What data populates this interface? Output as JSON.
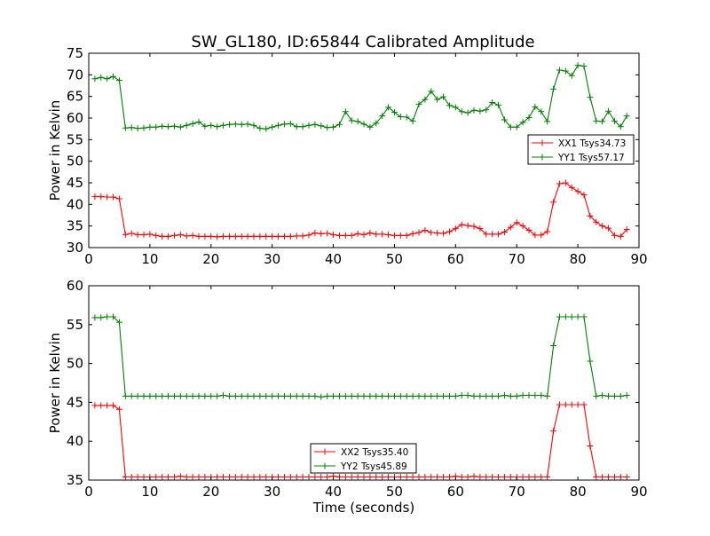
{
  "title": "SW_GL180, ID:65844 Calibrated Amplitude",
  "chart_data": [
    {
      "type": "line",
      "title": "SW_GL180, ID:65844 Calibrated Amplitude",
      "xlabel": "",
      "ylabel": "Power in Kelvin",
      "xlim": [
        0,
        90
      ],
      "ylim": [
        30,
        75
      ],
      "xticks": [
        0,
        10,
        20,
        30,
        40,
        50,
        60,
        70,
        80,
        90
      ],
      "yticks": [
        30,
        35,
        40,
        45,
        50,
        55,
        60,
        65,
        70,
        75
      ],
      "legend_position": "center-right",
      "grid": false,
      "series": [
        {
          "name": "XX1 Tsys34.73",
          "color": "#ff0000",
          "x": [
            1,
            2,
            3,
            4,
            5,
            6,
            7,
            8,
            9,
            10,
            11,
            12,
            13,
            14,
            15,
            16,
            17,
            18,
            19,
            20,
            21,
            22,
            23,
            24,
            25,
            26,
            27,
            28,
            29,
            30,
            31,
            32,
            33,
            34,
            35,
            36,
            37,
            38,
            39,
            40,
            41,
            42,
            43,
            44,
            45,
            46,
            47,
            48,
            49,
            50,
            51,
            52,
            53,
            54,
            55,
            56,
            57,
            58,
            59,
            60,
            61,
            62,
            63,
            64,
            65,
            66,
            67,
            68,
            69,
            70,
            71,
            72,
            73,
            74,
            75,
            76,
            77,
            78,
            79,
            80,
            81,
            82,
            83,
            84,
            85,
            86,
            87,
            88
          ],
          "values": [
            41.8,
            41.8,
            41.7,
            41.7,
            41.3,
            33.0,
            33.3,
            33.0,
            33.0,
            33.1,
            32.8,
            32.6,
            32.6,
            32.8,
            33.0,
            32.7,
            32.8,
            32.6,
            32.6,
            32.6,
            32.5,
            32.6,
            32.6,
            32.6,
            32.6,
            32.6,
            32.6,
            32.6,
            32.6,
            32.6,
            32.6,
            32.6,
            32.6,
            32.7,
            32.7,
            32.9,
            33.4,
            33.2,
            33.3,
            33.0,
            32.8,
            32.8,
            32.8,
            33.2,
            33.0,
            33.4,
            33.1,
            33.1,
            33.0,
            32.8,
            32.8,
            32.8,
            33.2,
            33.5,
            34.0,
            33.5,
            33.4,
            33.3,
            33.7,
            34.4,
            35.3,
            35.1,
            34.9,
            34.4,
            33.1,
            33.1,
            33.1,
            33.6,
            34.7,
            35.8,
            35.0,
            34.0,
            32.9,
            32.9,
            33.7,
            40.5,
            44.8,
            45.0,
            43.9,
            43.0,
            42.2,
            37.3,
            35.9,
            35.0,
            34.5,
            32.8,
            32.6,
            34.2
          ]
        },
        {
          "name": "YY1 Tsys57.17",
          "color": "#008000",
          "x": [
            1,
            2,
            3,
            4,
            5,
            6,
            7,
            8,
            9,
            10,
            11,
            12,
            13,
            14,
            15,
            16,
            17,
            18,
            19,
            20,
            21,
            22,
            23,
            24,
            25,
            26,
            27,
            28,
            29,
            30,
            31,
            32,
            33,
            34,
            35,
            36,
            37,
            38,
            39,
            40,
            41,
            42,
            43,
            44,
            45,
            46,
            47,
            48,
            49,
            50,
            51,
            52,
            53,
            54,
            55,
            56,
            57,
            58,
            59,
            60,
            61,
            62,
            63,
            64,
            65,
            66,
            67,
            68,
            69,
            70,
            71,
            72,
            73,
            74,
            75,
            76,
            77,
            78,
            79,
            80,
            81,
            82,
            83,
            84,
            85,
            86,
            87,
            88
          ],
          "values": [
            69.1,
            69.4,
            69.1,
            69.6,
            68.7,
            57.7,
            57.8,
            57.6,
            57.7,
            57.9,
            57.9,
            58.1,
            58.0,
            58.1,
            57.9,
            58.3,
            58.7,
            59.1,
            58.1,
            58.3,
            58.0,
            58.3,
            58.5,
            58.6,
            58.5,
            58.6,
            58.3,
            57.6,
            57.5,
            57.9,
            58.3,
            58.6,
            58.7,
            58.0,
            58.0,
            58.3,
            58.5,
            58.2,
            57.8,
            57.9,
            58.5,
            61.5,
            59.4,
            59.2,
            58.6,
            57.9,
            58.8,
            60.5,
            62.5,
            61.3,
            60.3,
            60.2,
            59.3,
            63.2,
            64.3,
            66.2,
            64.3,
            64.9,
            62.9,
            62.5,
            61.5,
            61.2,
            61.8,
            61.6,
            61.9,
            63.6,
            63.0,
            59.6,
            57.9,
            57.9,
            59.0,
            60.1,
            62.6,
            61.5,
            59.2,
            66.7,
            71.1,
            70.9,
            69.8,
            72.2,
            72.0,
            64.8,
            59.3,
            59.2,
            61.6,
            59.3,
            58.0,
            60.5
          ]
        }
      ]
    },
    {
      "type": "line",
      "title": "",
      "xlabel": "Time (seconds)",
      "ylabel": "Power in Kelvin",
      "xlim": [
        0,
        90
      ],
      "ylim": [
        35,
        60
      ],
      "xticks": [
        0,
        10,
        20,
        30,
        40,
        50,
        60,
        70,
        80,
        90
      ],
      "yticks": [
        35,
        40,
        45,
        50,
        55,
        60
      ],
      "legend_position": "lower-center",
      "grid": false,
      "series": [
        {
          "name": "XX2 Tsys35.40",
          "color": "#ff0000",
          "x": [
            1,
            2,
            3,
            4,
            5,
            6,
            7,
            8,
            9,
            10,
            11,
            12,
            13,
            14,
            15,
            16,
            17,
            18,
            19,
            20,
            21,
            22,
            23,
            24,
            25,
            26,
            27,
            28,
            29,
            30,
            31,
            32,
            33,
            34,
            35,
            36,
            37,
            38,
            39,
            40,
            41,
            42,
            43,
            44,
            45,
            46,
            47,
            48,
            49,
            50,
            51,
            52,
            53,
            54,
            55,
            56,
            57,
            58,
            59,
            60,
            61,
            62,
            63,
            64,
            65,
            66,
            67,
            68,
            69,
            70,
            71,
            72,
            73,
            74,
            75,
            76,
            77,
            78,
            79,
            80,
            81,
            82,
            83,
            84,
            85,
            86,
            87,
            88
          ],
          "values": [
            44.6,
            44.6,
            44.6,
            44.6,
            44.1,
            35.4,
            35.4,
            35.4,
            35.4,
            35.4,
            35.4,
            35.4,
            35.4,
            35.4,
            35.5,
            35.4,
            35.4,
            35.4,
            35.4,
            35.4,
            35.4,
            35.4,
            35.4,
            35.4,
            35.4,
            35.4,
            35.4,
            35.4,
            35.4,
            35.4,
            35.4,
            35.4,
            35.4,
            35.4,
            35.4,
            35.4,
            35.4,
            35.4,
            35.4,
            35.5,
            35.4,
            35.4,
            35.4,
            35.4,
            35.4,
            35.4,
            35.4,
            35.4,
            35.4,
            35.4,
            35.4,
            35.4,
            35.4,
            35.4,
            35.4,
            35.4,
            35.4,
            35.4,
            35.4,
            35.5,
            35.4,
            35.4,
            35.5,
            35.4,
            35.4,
            35.4,
            35.4,
            35.4,
            35.4,
            35.4,
            35.4,
            35.4,
            35.4,
            35.4,
            35.4,
            41.3,
            44.7,
            44.7,
            44.7,
            44.7,
            44.7,
            39.4,
            35.4,
            35.4,
            35.4,
            35.4,
            35.4,
            35.4
          ]
        },
        {
          "name": "YY2 Tsys45.89",
          "color": "#008000",
          "x": [
            1,
            2,
            3,
            4,
            5,
            6,
            7,
            8,
            9,
            10,
            11,
            12,
            13,
            14,
            15,
            16,
            17,
            18,
            19,
            20,
            21,
            22,
            23,
            24,
            25,
            26,
            27,
            28,
            29,
            30,
            31,
            32,
            33,
            34,
            35,
            36,
            37,
            38,
            39,
            40,
            41,
            42,
            43,
            44,
            45,
            46,
            47,
            48,
            49,
            50,
            51,
            52,
            53,
            54,
            55,
            56,
            57,
            58,
            59,
            60,
            61,
            62,
            63,
            64,
            65,
            66,
            67,
            68,
            69,
            70,
            71,
            72,
            73,
            74,
            75,
            76,
            77,
            78,
            79,
            80,
            81,
            82,
            83,
            84,
            85,
            86,
            87,
            88
          ],
          "values": [
            55.9,
            55.9,
            56.0,
            56.0,
            55.3,
            45.8,
            45.8,
            45.8,
            45.8,
            45.8,
            45.8,
            45.8,
            45.8,
            45.8,
            45.8,
            45.8,
            45.8,
            45.8,
            45.8,
            45.8,
            45.8,
            45.9,
            45.8,
            45.8,
            45.8,
            45.8,
            45.8,
            45.8,
            45.8,
            45.8,
            45.8,
            45.8,
            45.8,
            45.8,
            45.8,
            45.8,
            45.8,
            45.7,
            45.8,
            45.8,
            45.8,
            45.8,
            45.8,
            45.8,
            45.8,
            45.8,
            45.8,
            45.8,
            45.8,
            45.8,
            45.8,
            45.8,
            45.8,
            45.8,
            45.8,
            45.8,
            45.8,
            45.8,
            45.8,
            45.8,
            45.9,
            45.9,
            45.8,
            45.8,
            45.8,
            45.8,
            45.8,
            45.9,
            45.8,
            45.8,
            45.9,
            45.9,
            45.9,
            45.9,
            45.8,
            52.3,
            56.0,
            56.0,
            56.0,
            56.0,
            56.0,
            50.3,
            45.8,
            45.9,
            45.8,
            45.8,
            45.8,
            45.9
          ]
        }
      ]
    }
  ]
}
